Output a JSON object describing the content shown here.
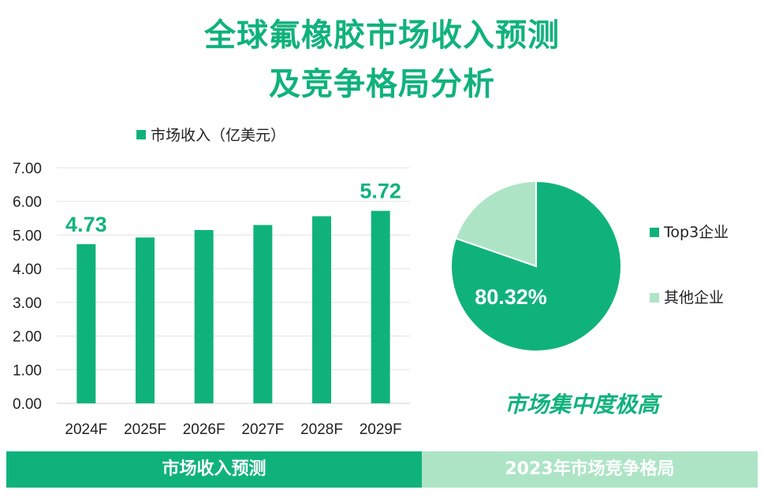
{
  "title_line1": "全球氟橡胶市场收入预测",
  "title_line2": "及竞争格局分析",
  "conclusion": "市场集中度极高",
  "band_left": "市场收入预测",
  "band_right": "2023年市场竞争格局",
  "colors": {
    "primary": "#10b27c",
    "light": "#aee4c6",
    "grid": "#e3e3e3"
  },
  "chart_data": [
    {
      "type": "bar",
      "categories": [
        "2024F",
        "2025F",
        "2026F",
        "2027F",
        "2028F",
        "2029F"
      ],
      "series": [
        {
          "name": "市场收入（亿美元）",
          "values": [
            4.73,
            4.93,
            5.15,
            5.3,
            5.56,
            5.72
          ]
        }
      ],
      "data_labels": [
        {
          "index": 0,
          "text": "4.73"
        },
        {
          "index": 5,
          "text": "5.72"
        }
      ],
      "yticks": [
        "0.00",
        "1.00",
        "2.00",
        "3.00",
        "4.00",
        "5.00",
        "6.00",
        "7.00"
      ],
      "ylim": [
        0,
        7
      ],
      "grid": true,
      "legend_position": "top"
    },
    {
      "type": "pie",
      "slices": [
        {
          "name": "Top3企业",
          "value": 80.32
        },
        {
          "name": "其他企业",
          "value": 19.68
        }
      ],
      "label": "80.32%",
      "legend_position": "right"
    }
  ]
}
